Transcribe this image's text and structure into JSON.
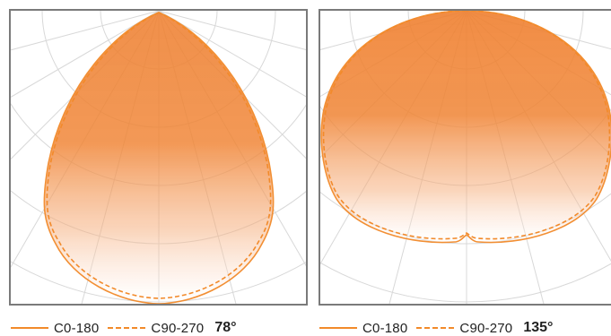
{
  "colors": {
    "curve": "#f28a2a",
    "fill_top": "#ef8030",
    "grid": "#d8d8d8",
    "frame": "#7a7a7a"
  },
  "diagrams": [
    {
      "legend": {
        "solid_label": "C0-180",
        "dashed_label": "C90-270",
        "beam_angle": "78°"
      }
    },
    {
      "legend": {
        "solid_label": "C0-180",
        "dashed_label": "C90-270",
        "beam_angle": "135°"
      }
    }
  ]
}
